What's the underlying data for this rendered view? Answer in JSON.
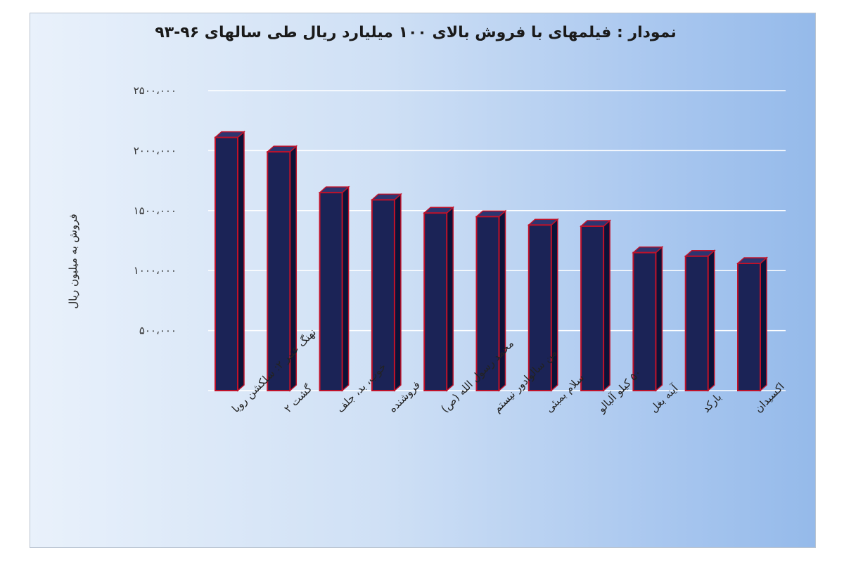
{
  "chart_data": {
    "type": "bar",
    "title": "نمودار : فیلمهای با فروش بالای ۱۰۰ میلیارد ریال طی سالهای ۹۶-۹۳",
    "ylabel": "فروش به میلیون ریال",
    "xlabel": "",
    "ylim": [
      0,
      2500000
    ],
    "yticks": [
      500000,
      1000000,
      1500000,
      2000000,
      2500000
    ],
    "ytick_labels": [
      "۵۰۰،۰۰۰",
      "۱۰۰۰،۰۰۰",
      "۱۵۰۰،۰۰۰",
      "۲۰۰۰،۰۰۰",
      "۲۵۰۰،۰۰۰"
    ],
    "categories": [
      "نهنگ عنبر ۲: سلکشن رویا",
      "گشت ۲",
      "خوب، بد، جلف",
      "فروشنده",
      "محمد رسول الله (ص)",
      "من سالوادور نیستم",
      "سلام بمبئی",
      "۵۰ کیلو آلبالو",
      "آینه بغل",
      "بارکد",
      "اکسیدان"
    ],
    "values": [
      2110000,
      1990000,
      1650000,
      1590000,
      1480000,
      1450000,
      1380000,
      1370000,
      1150000,
      1120000,
      1060000
    ],
    "grid": true,
    "colors": {
      "bar_face": "#1b2356",
      "bar_outline": "#c0122a",
      "bar_top": "#2d3570",
      "bar_side": "#0c1238",
      "grid": "#ffffff"
    }
  }
}
